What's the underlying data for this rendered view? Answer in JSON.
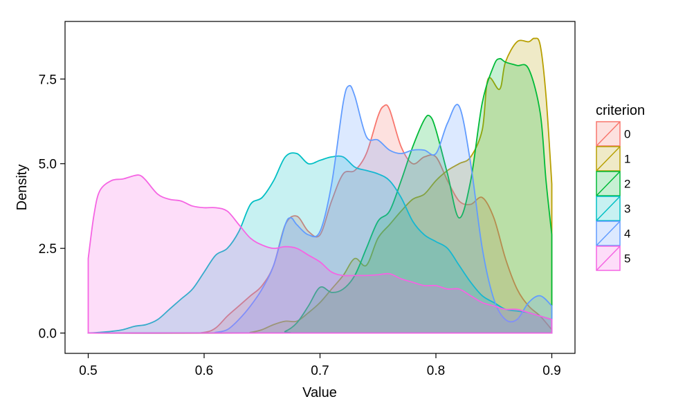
{
  "chart_data": {
    "type": "area",
    "title": "",
    "xlabel": "Value",
    "ylabel": "Density",
    "xlim": [
      0.48,
      0.92
    ],
    "ylim": [
      -0.6,
      9.2
    ],
    "xticks": [
      0.5,
      0.6,
      0.7,
      0.8,
      0.9
    ],
    "xtick_labels": [
      "0.5",
      "0.6",
      "0.7",
      "0.8",
      "0.9"
    ],
    "yticks": [
      0.0,
      2.5,
      5.0,
      7.5
    ],
    "ytick_labels": [
      "0.0",
      "2.5",
      "5.0",
      "7.5"
    ],
    "grid": false,
    "legend": {
      "title": "criterion",
      "position": "right"
    },
    "fill_opacity": 0.22,
    "series": [
      {
        "name": "0",
        "color": "#F8766D",
        "x": [
          0.5,
          0.58,
          0.6,
          0.61,
          0.62,
          0.63,
          0.64,
          0.65,
          0.66,
          0.67,
          0.68,
          0.69,
          0.7,
          0.71,
          0.72,
          0.73,
          0.74,
          0.75,
          0.755,
          0.76,
          0.77,
          0.78,
          0.79,
          0.8,
          0.81,
          0.82,
          0.83,
          0.84,
          0.85,
          0.86,
          0.87,
          0.88,
          0.89,
          0.9
        ],
        "y": [
          0,
          0,
          0.02,
          0.15,
          0.5,
          0.8,
          1.1,
          1.4,
          2.0,
          3.2,
          3.45,
          3.0,
          2.9,
          3.9,
          4.7,
          4.8,
          5.3,
          6.4,
          6.7,
          6.6,
          5.5,
          5.0,
          5.2,
          5.2,
          4.5,
          3.9,
          3.8,
          4.0,
          3.4,
          2.2,
          1.3,
          0.8,
          0.5,
          0.1
        ]
      },
      {
        "name": "1",
        "color": "#B79F00",
        "x": [
          0.5,
          0.63,
          0.64,
          0.65,
          0.66,
          0.67,
          0.68,
          0.69,
          0.7,
          0.71,
          0.72,
          0.73,
          0.74,
          0.75,
          0.76,
          0.77,
          0.78,
          0.79,
          0.8,
          0.81,
          0.82,
          0.83,
          0.84,
          0.845,
          0.855,
          0.86,
          0.87,
          0.88,
          0.885,
          0.89,
          0.895,
          0.9
        ],
        "y": [
          0,
          0,
          0.02,
          0.1,
          0.25,
          0.35,
          0.35,
          0.6,
          0.9,
          1.3,
          1.7,
          2.2,
          2.0,
          2.8,
          3.2,
          3.6,
          3.95,
          4.1,
          4.5,
          4.8,
          5.0,
          5.2,
          6.0,
          7.5,
          7.2,
          8.0,
          8.6,
          8.6,
          8.7,
          8.5,
          7.0,
          4.4
        ]
      },
      {
        "name": "2",
        "color": "#00BA38",
        "x": [
          0.5,
          0.66,
          0.67,
          0.68,
          0.69,
          0.7,
          0.71,
          0.72,
          0.73,
          0.74,
          0.75,
          0.76,
          0.77,
          0.78,
          0.79,
          0.795,
          0.8,
          0.81,
          0.82,
          0.83,
          0.84,
          0.85,
          0.855,
          0.86,
          0.87,
          0.88,
          0.89,
          0.895,
          0.9
        ],
        "y": [
          0,
          0,
          0.05,
          0.3,
          0.8,
          1.35,
          1.2,
          1.3,
          1.7,
          2.5,
          3.3,
          3.6,
          4.5,
          5.5,
          6.3,
          6.4,
          6.0,
          4.7,
          3.4,
          4.5,
          6.8,
          7.9,
          8.1,
          8.0,
          7.9,
          7.8,
          6.5,
          4.5,
          2.9
        ]
      },
      {
        "name": "3",
        "color": "#00BFC4",
        "x": [
          0.5,
          0.51,
          0.52,
          0.53,
          0.54,
          0.55,
          0.56,
          0.57,
          0.58,
          0.59,
          0.6,
          0.61,
          0.62,
          0.63,
          0.64,
          0.65,
          0.66,
          0.67,
          0.68,
          0.69,
          0.7,
          0.71,
          0.72,
          0.73,
          0.74,
          0.75,
          0.76,
          0.77,
          0.78,
          0.79,
          0.8,
          0.81,
          0.82,
          0.83,
          0.84,
          0.85,
          0.86,
          0.87,
          0.88,
          0.89,
          0.9
        ],
        "y": [
          0,
          0.02,
          0.05,
          0.1,
          0.2,
          0.25,
          0.4,
          0.7,
          1.0,
          1.3,
          1.8,
          2.3,
          2.5,
          3.0,
          3.8,
          4.0,
          4.5,
          5.2,
          5.3,
          5.0,
          5.1,
          5.2,
          5.2,
          4.9,
          4.8,
          4.7,
          4.5,
          4.0,
          3.3,
          2.9,
          2.7,
          2.5,
          2.0,
          1.5,
          1.1,
          0.9,
          0.7,
          0.65,
          0.6,
          0.5,
          0.4
        ]
      },
      {
        "name": "4",
        "color": "#619CFF",
        "x": [
          0.5,
          0.6,
          0.61,
          0.62,
          0.63,
          0.64,
          0.65,
          0.66,
          0.67,
          0.675,
          0.68,
          0.69,
          0.7,
          0.71,
          0.72,
          0.725,
          0.73,
          0.74,
          0.75,
          0.76,
          0.77,
          0.78,
          0.79,
          0.8,
          0.81,
          0.82,
          0.83,
          0.84,
          0.85,
          0.86,
          0.87,
          0.88,
          0.89,
          0.9
        ],
        "y": [
          0,
          0,
          0.02,
          0.1,
          0.4,
          0.8,
          1.3,
          2.0,
          3.2,
          3.4,
          3.2,
          2.9,
          3.0,
          4.4,
          6.8,
          7.3,
          7.0,
          5.8,
          5.7,
          5.4,
          5.3,
          5.4,
          5.4,
          5.3,
          6.2,
          6.7,
          5.0,
          2.5,
          1.0,
          0.4,
          0.4,
          0.9,
          1.1,
          0.8
        ]
      },
      {
        "name": "5",
        "color": "#F564E3",
        "x": [
          0.5,
          0.505,
          0.51,
          0.52,
          0.53,
          0.54,
          0.545,
          0.55,
          0.56,
          0.57,
          0.58,
          0.59,
          0.6,
          0.61,
          0.62,
          0.63,
          0.64,
          0.65,
          0.66,
          0.67,
          0.68,
          0.69,
          0.7,
          0.71,
          0.72,
          0.73,
          0.74,
          0.75,
          0.76,
          0.77,
          0.78,
          0.79,
          0.8,
          0.81,
          0.82,
          0.83,
          0.84,
          0.85,
          0.86,
          0.87,
          0.88,
          0.89,
          0.9
        ],
        "y": [
          2.2,
          3.5,
          4.2,
          4.5,
          4.55,
          4.65,
          4.65,
          4.5,
          4.1,
          3.95,
          3.9,
          3.75,
          3.7,
          3.7,
          3.6,
          3.2,
          2.8,
          2.6,
          2.5,
          2.55,
          2.5,
          2.3,
          2.1,
          1.8,
          1.7,
          1.7,
          1.7,
          1.72,
          1.75,
          1.6,
          1.5,
          1.4,
          1.4,
          1.3,
          1.3,
          1.1,
          0.9,
          0.8,
          0.7,
          0.7,
          0.6,
          0.5,
          0.4
        ]
      }
    ]
  }
}
